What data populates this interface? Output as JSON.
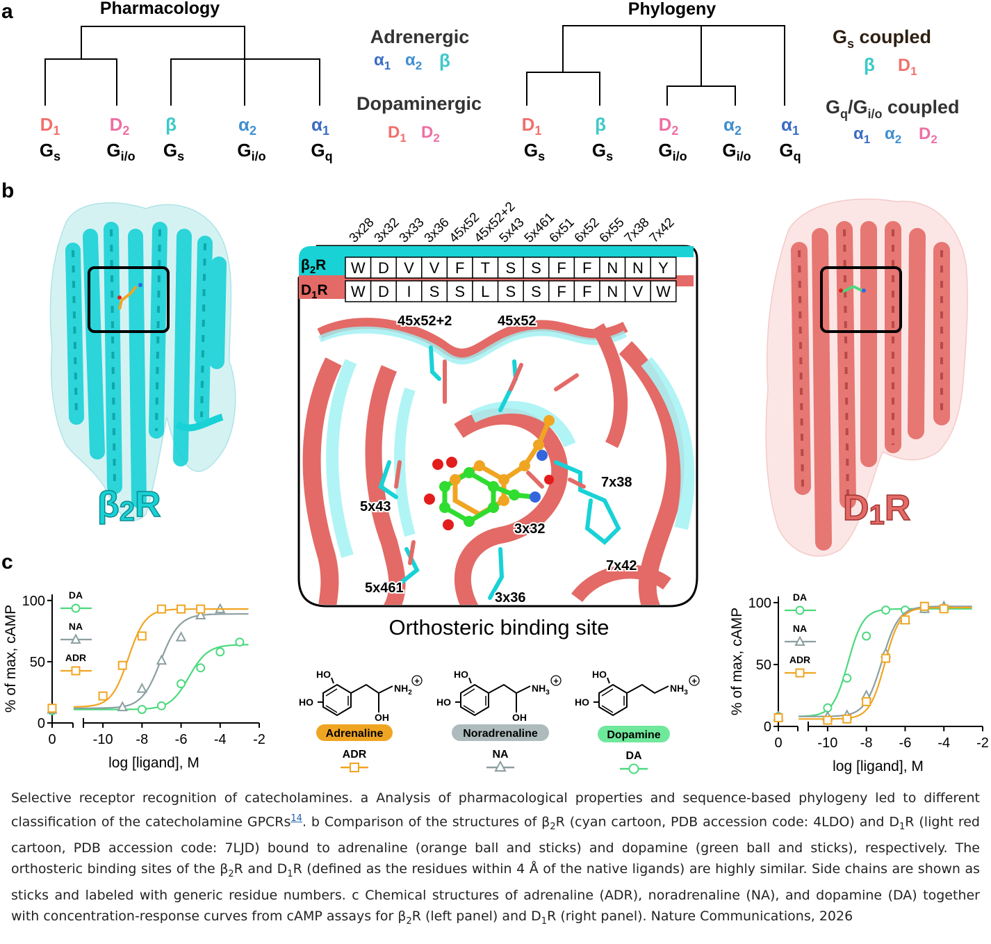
{
  "panels": {
    "a": "a",
    "b": "b",
    "c": "c"
  },
  "colors": {
    "D1": "#f0706d",
    "D2": "#ee6fa3",
    "beta": "#3cc8c8",
    "alpha2": "#3f8fd0",
    "alpha1": "#3a6cc5",
    "cyan_protein": "#18d2d6",
    "red_protein": "#e36a66",
    "adr": "#f0a522",
    "na": "#8b9ea0",
    "da": "#4bd97d",
    "gs_title": "#2d1f12"
  },
  "pharmacology": {
    "title": "Pharmacology",
    "leaves": [
      {
        "receptor": "D",
        "sub": "1",
        "g": "G",
        "gsub": "s",
        "color": "#f0706d"
      },
      {
        "receptor": "D",
        "sub": "2",
        "g": "G",
        "gsub": "i/o",
        "color": "#ee6fa3"
      },
      {
        "receptor": "β",
        "sub": "",
        "g": "G",
        "gsub": "s",
        "color": "#3cc8c8"
      },
      {
        "receptor": "α",
        "sub": "2",
        "g": "G",
        "gsub": "i/o",
        "color": "#3f8fd0"
      },
      {
        "receptor": "α",
        "sub": "1",
        "g": "G",
        "gsub": "q",
        "color": "#3a6cc5"
      }
    ]
  },
  "classes": {
    "adrenergic": "Adrenergic",
    "adrenergic_members": [
      {
        "sym": "α",
        "sub": "1",
        "color": "#3a6cc5"
      },
      {
        "sym": "α",
        "sub": "2",
        "color": "#3f8fd0"
      },
      {
        "sym": "β",
        "sub": "",
        "color": "#3cc8c8"
      }
    ],
    "dopaminergic": "Dopaminergic",
    "dopaminergic_members": [
      {
        "sym": "D",
        "sub": "1",
        "color": "#f0706d"
      },
      {
        "sym": "D",
        "sub": "2",
        "color": "#ee6fa3"
      }
    ]
  },
  "phylogeny": {
    "title": "Phylogeny",
    "leaves": [
      {
        "receptor": "D",
        "sub": "1",
        "g": "G",
        "gsub": "s",
        "color": "#f0706d"
      },
      {
        "receptor": "β",
        "sub": "",
        "g": "G",
        "gsub": "s",
        "color": "#3cc8c8"
      },
      {
        "receptor": "D",
        "sub": "2",
        "g": "G",
        "gsub": "i/o",
        "color": "#ee6fa3"
      },
      {
        "receptor": "α",
        "sub": "2",
        "g": "G",
        "gsub": "i/o",
        "color": "#3f8fd0"
      },
      {
        "receptor": "α",
        "sub": "1",
        "g": "G",
        "gsub": "q",
        "color": "#3a6cc5"
      }
    ]
  },
  "coupling": {
    "gs_label": "G",
    "gs_sub": "s",
    "gs_tail": " coupled",
    "gs_members": [
      {
        "sym": "β",
        "sub": "",
        "color": "#3cc8c8"
      },
      {
        "sym": "D",
        "sub": "1",
        "color": "#f0706d"
      }
    ],
    "gq_label_a": "G",
    "gq_sub_a": "q",
    "gq_mid": "/G",
    "gq_sub_b": "i/o",
    "gq_tail": " coupled",
    "gq_members": [
      {
        "sym": "α",
        "sub": "1",
        "color": "#3a6cc5"
      },
      {
        "sym": "α",
        "sub": "2",
        "color": "#3f8fd0"
      },
      {
        "sym": "D",
        "sub": "2",
        "color": "#ee6fa3"
      }
    ]
  },
  "structures": {
    "left_label": "β",
    "left_sub": "2",
    "left_tail": "R",
    "right_label": "D",
    "right_sub": "1",
    "right_tail": "R"
  },
  "alignment": {
    "positions": [
      "3x28",
      "3x32",
      "3x33",
      "3x36",
      "45x52",
      "45x52+2",
      "5x43",
      "5x461",
      "6x51",
      "6x52",
      "6x55",
      "7x38",
      "7x42"
    ],
    "rows": [
      {
        "label": "β",
        "sub": "2",
        "tail": "R",
        "residues": [
          "W",
          "D",
          "V",
          "V",
          "F",
          "T",
          "S",
          "S",
          "F",
          "F",
          "N",
          "N",
          "Y"
        ]
      },
      {
        "label": "D",
        "sub": "1",
        "tail": "R",
        "residues": [
          "W",
          "D",
          "I",
          "S",
          "S",
          "L",
          "S",
          "S",
          "F",
          "F",
          "N",
          "V",
          "W"
        ]
      }
    ]
  },
  "site_labels": [
    "45x52+2",
    "45x52",
    "7x38",
    "5x43",
    "3x32",
    "7x42",
    "5x461",
    "3x36"
  ],
  "site_title": "Orthosteric binding site",
  "ligands": [
    {
      "name": "Adrenaline",
      "abbr": "ADR",
      "color": "#f0a522",
      "marker": "square",
      "amine": "NH",
      "amine_sub": "2",
      "has_oh": true
    },
    {
      "name": "Noradrenaline",
      "abbr": "NA",
      "color": "#8b9ea0",
      "marker": "triangle",
      "amine": "NH",
      "amine_sub": "3",
      "has_oh": true
    },
    {
      "name": "Dopamine",
      "abbr": "DA",
      "color": "#4bd97d",
      "marker": "circle",
      "amine": "NH",
      "amine_sub": "3",
      "has_oh": false
    }
  ],
  "atom_labels": {
    "ho": "HO",
    "oh": "OH",
    "plus": "+"
  },
  "chart_data": [
    {
      "type": "scatter",
      "panel": "β2R",
      "xlabel": "log [ligand], M",
      "ylabel": "% of max, cAMP",
      "xticks": [
        "0",
        "-10",
        "-8",
        "-6",
        "-4",
        "-2"
      ],
      "yticks": [
        "0",
        "50",
        "100"
      ],
      "xlim": [
        -11,
        -2
      ],
      "ylim": [
        0,
        105
      ],
      "legend": [
        "DA",
        "NA",
        "ADR"
      ],
      "series": [
        {
          "name": "DA",
          "color": "#4bd97d",
          "marker": "circle",
          "baseline": 10,
          "x": [
            -8,
            -7,
            -6,
            -5,
            -4,
            -3
          ],
          "y": [
            11,
            14,
            32,
            45,
            58,
            66
          ],
          "fit": {
            "bottom": 11,
            "top": 64,
            "logec50": -5.6,
            "hill": 0.9
          }
        },
        {
          "name": "NA",
          "color": "#8b9ea0",
          "marker": "triangle",
          "baseline": 11,
          "x": [
            -9,
            -8,
            -7,
            -6,
            -5,
            -4
          ],
          "y": [
            13,
            28,
            51,
            70,
            88,
            93
          ],
          "fit": {
            "bottom": 12,
            "top": 89,
            "logec50": -7.05,
            "hill": 0.9
          }
        },
        {
          "name": "ADR",
          "color": "#f0a522",
          "marker": "square",
          "baseline": 12,
          "x": [
            -10,
            -9,
            -8,
            -7,
            -6,
            -5
          ],
          "y": [
            22,
            47,
            71,
            93,
            93,
            93
          ],
          "fit": {
            "bottom": 13,
            "top": 93,
            "logec50": -8.7,
            "hill": 1.0
          }
        }
      ]
    },
    {
      "type": "scatter",
      "panel": "D1R",
      "xlabel": "log [ligand], M",
      "ylabel": "% of max, cAMP",
      "xticks": [
        "0",
        "-10",
        "-8",
        "-6",
        "-4",
        "-2"
      ],
      "yticks": [
        "0",
        "50",
        "100"
      ],
      "xlim": [
        -11,
        -2
      ],
      "ylim": [
        0,
        105
      ],
      "legend": [
        "DA",
        "NA",
        "ADR"
      ],
      "series": [
        {
          "name": "DA",
          "color": "#4bd97d",
          "marker": "circle",
          "baseline": 8,
          "x": [
            -10,
            -9,
            -8,
            -7,
            -6,
            -5,
            -4
          ],
          "y": [
            15,
            39,
            73,
            94,
            94,
            95,
            95
          ],
          "fit": {
            "bottom": 8,
            "top": 95,
            "logec50": -8.95,
            "hill": 1.1
          }
        },
        {
          "name": "NA",
          "color": "#8b9ea0",
          "marker": "triangle",
          "baseline": 8,
          "x": [
            -10,
            -9,
            -8,
            -7,
            -6,
            -5,
            -4
          ],
          "y": [
            8,
            9,
            25,
            59,
            86,
            95,
            97
          ],
          "fit": {
            "bottom": 8,
            "top": 97,
            "logec50": -7.2,
            "hill": 1.0
          }
        },
        {
          "name": "ADR",
          "color": "#f0a522",
          "marker": "square",
          "baseline": 7,
          "x": [
            -10,
            -9,
            -8,
            -7,
            -6,
            -5,
            -4
          ],
          "y": [
            5,
            6,
            20,
            55,
            86,
            97,
            95
          ],
          "fit": {
            "bottom": 6,
            "top": 96,
            "logec50": -7.05,
            "hill": 1.1
          }
        }
      ]
    }
  ],
  "caption": {
    "p1": "Selective receptor recognition of catecholamines. a Analysis of pharmacological properties and sequence-based phylogeny led to different classification of the catecholamine GPCRs",
    "ref": "14",
    "p2": ". b Comparison of the structures of β",
    "s1": "2",
    "p3": "R (cyan cartoon, PDB accession code: 4LDO) and D",
    "s2": "1",
    "p4": "R (light red cartoon, PDB accession code: 7LJD) bound to adrenaline (orange ball and sticks) and dopamine (green ball and sticks), respectively. The orthosteric binding sites of the β",
    "s3": "2",
    "p5": "R and D",
    "s4": "1",
    "p6": "R (defined as the residues within 4 Å of the native ligands) are highly similar. Side chains are shown as sticks and labeled with generic residue numbers. c Chemical structures of adrenaline (ADR), noradrenaline (NA), and dopamine (DA) together with concentration-response curves from cAMP assays for β",
    "s5": "2",
    "p7": "R (left panel) and D",
    "s6": "1",
    "p8": "R (right panel). Nature Communications, 2026"
  }
}
